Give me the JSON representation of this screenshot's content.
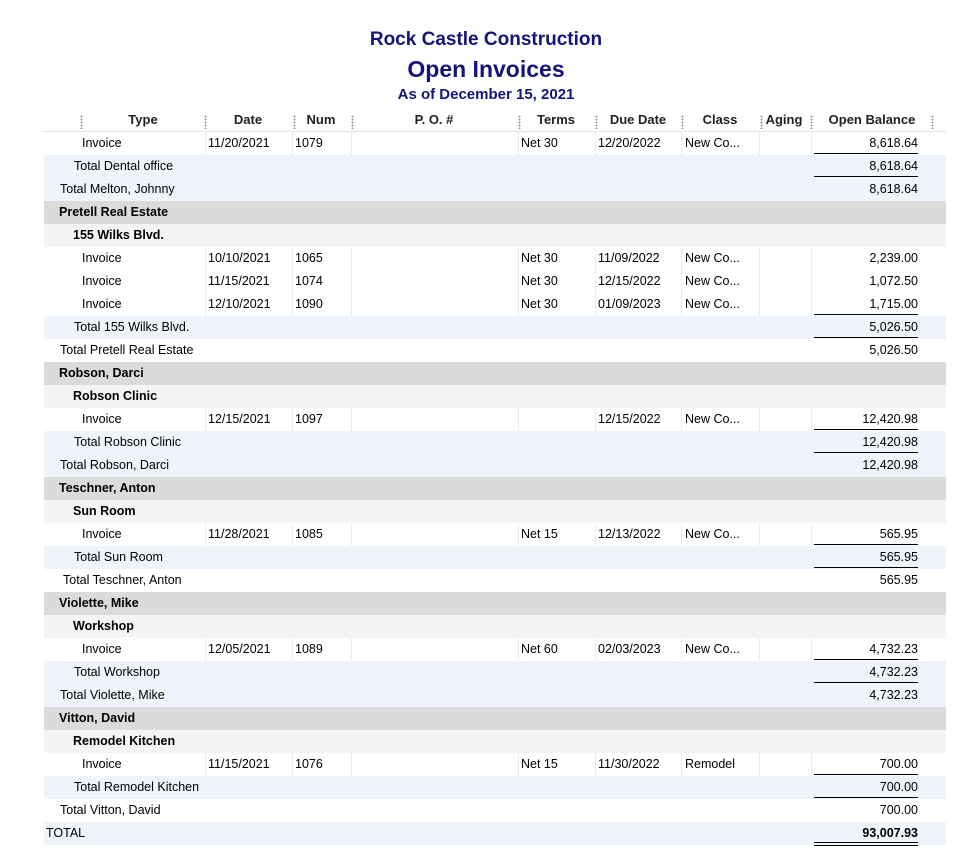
{
  "report": {
    "company": "Rock Castle Construction",
    "title": "Open Invoices",
    "as_of": "As of December 15, 2021"
  },
  "columns": [
    "Type",
    "Date",
    "Num",
    "P. O. #",
    "Terms",
    "Due Date",
    "Class",
    "Aging",
    "Open Balance"
  ],
  "rows": [
    {
      "kind": "detail",
      "type": "Invoice",
      "date": "11/20/2021",
      "num": "1079",
      "po": "",
      "terms": "Net 30",
      "due": "12/20/2022",
      "class": "New Co...",
      "aging": "",
      "balance": "8,618.64"
    },
    {
      "kind": "subtotal",
      "label": "Total Dental office",
      "balance": "8,618.64"
    },
    {
      "kind": "custtotal",
      "label": "Total Melton, Johnny",
      "balance": "8,618.64"
    },
    {
      "kind": "customer",
      "label": "Pretell Real Estate"
    },
    {
      "kind": "job",
      "label": "155 Wilks Blvd."
    },
    {
      "kind": "detail",
      "type": "Invoice",
      "date": "10/10/2021",
      "num": "1065",
      "po": "",
      "terms": "Net 30",
      "due": "11/09/2022",
      "class": "New Co...",
      "aging": "",
      "balance": "2,239.00"
    },
    {
      "kind": "detail",
      "type": "Invoice",
      "date": "11/15/2021",
      "num": "1074",
      "po": "",
      "terms": "Net 30",
      "due": "12/15/2022",
      "class": "New Co...",
      "aging": "",
      "balance": "1,072.50"
    },
    {
      "kind": "detail",
      "type": "Invoice",
      "date": "12/10/2021",
      "num": "1090",
      "po": "",
      "terms": "Net 30",
      "due": "01/09/2023",
      "class": "New Co...",
      "aging": "",
      "balance": "1,715.00"
    },
    {
      "kind": "subtotal",
      "label": "Total 155 Wilks Blvd.",
      "balance": "5,026.50"
    },
    {
      "kind": "custtotal",
      "label": "Total Pretell Real Estate",
      "balance": "5,026.50"
    },
    {
      "kind": "customer",
      "label": "Robson, Darci"
    },
    {
      "kind": "job",
      "label": "Robson Clinic"
    },
    {
      "kind": "detail",
      "type": "Invoice",
      "date": "12/15/2021",
      "num": "1097",
      "po": "",
      "terms": "",
      "due": "12/15/2022",
      "class": "New Co...",
      "aging": "",
      "balance": "12,420.98"
    },
    {
      "kind": "subtotal",
      "label": "Total Robson Clinic",
      "balance": "12,420.98"
    },
    {
      "kind": "custtotal",
      "label": "Total Robson, Darci",
      "balance": "12,420.98"
    },
    {
      "kind": "customer",
      "label": "Teschner, Anton"
    },
    {
      "kind": "job",
      "label": "Sun Room"
    },
    {
      "kind": "detail",
      "type": "Invoice",
      "date": "11/28/2021",
      "num": "1085",
      "po": "",
      "terms": "Net 15",
      "due": "12/13/2022",
      "class": "New Co...",
      "aging": "",
      "balance": "565.95"
    },
    {
      "kind": "subtotal",
      "label": "Total Sun Room",
      "balance": "565.95"
    },
    {
      "kind": "custtotal",
      "label": "Total Teschner, Anton",
      "balance": "565.95"
    },
    {
      "kind": "customer",
      "label": "Violette, Mike"
    },
    {
      "kind": "job",
      "label": "Workshop"
    },
    {
      "kind": "detail",
      "type": "Invoice",
      "date": "12/05/2021",
      "num": "1089",
      "po": "",
      "terms": "Net 60",
      "due": "02/03/2023",
      "class": "New Co...",
      "aging": "",
      "balance": "4,732.23"
    },
    {
      "kind": "subtotal",
      "label": "Total Workshop",
      "balance": "4,732.23"
    },
    {
      "kind": "custtotal",
      "label": "Total Violette, Mike",
      "balance": "4,732.23"
    },
    {
      "kind": "customer",
      "label": "Vitton, David"
    },
    {
      "kind": "job",
      "label": "Remodel Kitchen"
    },
    {
      "kind": "detail",
      "type": "Invoice",
      "date": "11/15/2021",
      "num": "1076",
      "po": "",
      "terms": "Net 15",
      "due": "11/30/2022",
      "class": "Remodel",
      "aging": "",
      "balance": "700.00"
    },
    {
      "kind": "subtotal",
      "label": "Total Remodel Kitchen",
      "balance": "700.00"
    },
    {
      "kind": "custtotal",
      "label": "Total Vitton, David",
      "balance": "700.00"
    },
    {
      "kind": "grandtotal",
      "label": "TOTAL",
      "balance": "93,007.93"
    }
  ]
}
